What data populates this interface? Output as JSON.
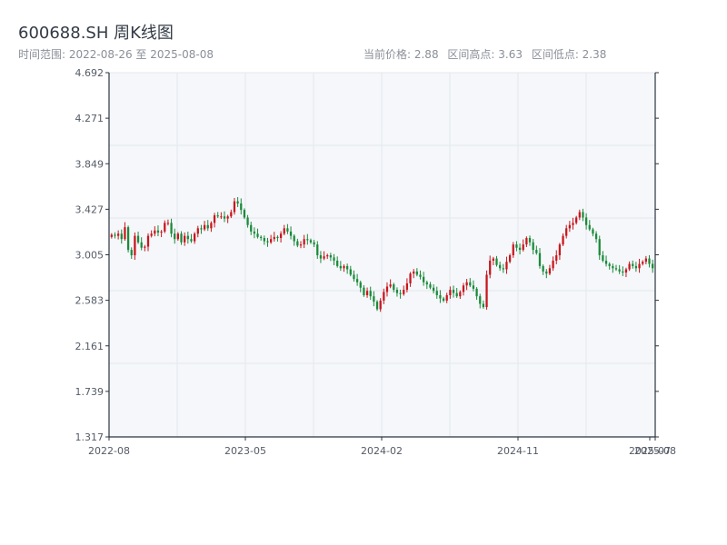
{
  "header": {
    "title": "600688.SH 周K线图",
    "range": "时间范围: 2022-08-26 至 2025-08-08",
    "current": "当前价格: 2.88",
    "high": "区间高点: 3.63",
    "low": "区间低点: 2.38"
  },
  "colors": {
    "up": "#c8161d",
    "down": "#1a8a3a",
    "axis": "#2b3440",
    "grid": "#e4e7ec",
    "plot_bg": "#f5f7fa"
  },
  "chart_data": {
    "type": "candlestick",
    "title": "600688.SH 周K线图",
    "ylim": [
      1.317,
      4.692
    ],
    "y_ticks": [
      "1.317",
      "1.739",
      "2.161",
      "2.583",
      "3.005",
      "3.427",
      "3.849",
      "4.271",
      "4.692"
    ],
    "x_ticks": [
      "2022-08",
      "2023-05",
      "2024-02",
      "2024-11",
      "2025-07",
      "2025-08"
    ],
    "close": [
      3.19,
      3.18,
      3.2,
      3.15,
      3.26,
      3.05,
      3.0,
      3.18,
      3.12,
      3.07,
      3.08,
      3.18,
      3.2,
      3.23,
      3.21,
      3.22,
      3.3,
      3.3,
      3.2,
      3.15,
      3.2,
      3.12,
      3.18,
      3.15,
      3.13,
      3.2,
      3.25,
      3.24,
      3.28,
      3.25,
      3.3,
      3.37,
      3.36,
      3.36,
      3.34,
      3.36,
      3.4,
      3.5,
      3.48,
      3.42,
      3.35,
      3.28,
      3.22,
      3.2,
      3.17,
      3.16,
      3.13,
      3.12,
      3.15,
      3.17,
      3.16,
      3.2,
      3.25,
      3.22,
      3.18,
      3.13,
      3.09,
      3.1,
      3.15,
      3.14,
      3.12,
      3.1,
      3.0,
      2.97,
      2.99,
      3.0,
      2.98,
      2.95,
      2.9,
      2.88,
      2.9,
      2.87,
      2.82,
      2.78,
      2.75,
      2.7,
      2.63,
      2.67,
      2.62,
      2.57,
      2.5,
      2.58,
      2.66,
      2.71,
      2.73,
      2.68,
      2.65,
      2.64,
      2.68,
      2.74,
      2.83,
      2.85,
      2.82,
      2.8,
      2.75,
      2.73,
      2.7,
      2.67,
      2.63,
      2.6,
      2.58,
      2.63,
      2.68,
      2.65,
      2.62,
      2.66,
      2.72,
      2.75,
      2.72,
      2.69,
      2.62,
      2.55,
      2.52,
      2.82,
      2.95,
      2.97,
      2.91,
      2.88,
      2.87,
      2.94,
      3.0,
      3.1,
      3.07,
      3.05,
      3.1,
      3.16,
      3.12,
      3.05,
      3.02,
      2.9,
      2.85,
      2.83,
      2.88,
      2.95,
      3.0,
      3.1,
      3.18,
      3.25,
      3.28,
      3.3,
      3.35,
      3.4,
      3.35,
      3.28,
      3.24,
      3.2,
      3.15,
      3.0,
      2.95,
      2.92,
      2.9,
      2.88,
      2.87,
      2.85,
      2.84,
      2.87,
      2.92,
      2.9,
      2.88,
      2.92,
      2.94,
      2.97,
      2.92,
      2.88
    ]
  }
}
